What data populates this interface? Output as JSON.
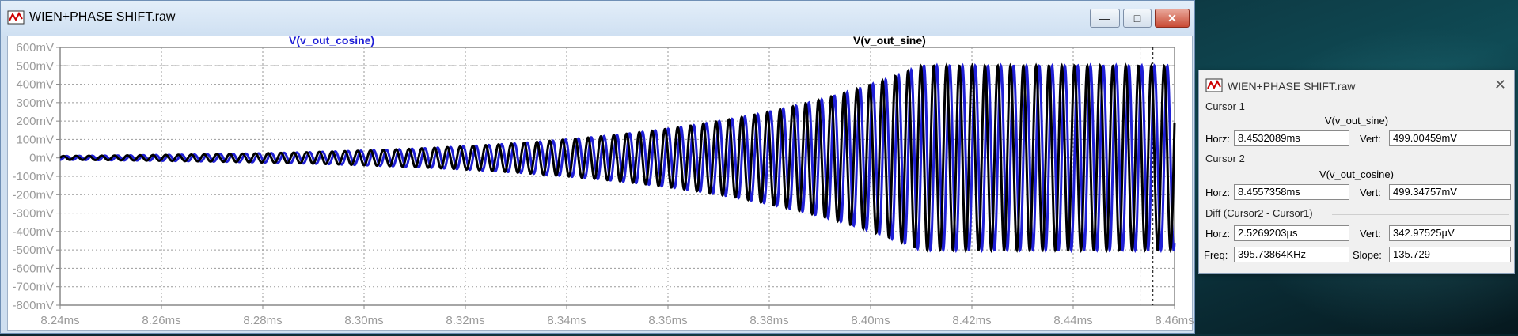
{
  "window": {
    "title": "WIEN+PHASE SHIFT.raw"
  },
  "controls": {
    "minimize": "—",
    "maximize": "□",
    "close": "✕"
  },
  "legend": {
    "trace1": "V(v_out_cosine)",
    "trace2": "V(v_out_sine)"
  },
  "colors": {
    "trace1": "#1f1fd6",
    "trace2": "#000000",
    "grid": "#9a9a9a",
    "axis_text": "#9a9a9a"
  },
  "chart_data": {
    "type": "line",
    "x_ticks": [
      "8.24ms",
      "8.26ms",
      "8.28ms",
      "8.30ms",
      "8.32ms",
      "8.34ms",
      "8.36ms",
      "8.38ms",
      "8.40ms",
      "8.42ms",
      "8.44ms",
      "8.46ms"
    ],
    "y_ticks": [
      "600mV",
      "500mV",
      "400mV",
      "300mV",
      "200mV",
      "100mV",
      "0mV",
      "-100mV",
      "-200mV",
      "-300mV",
      "-400mV",
      "-500mV",
      "-600mV",
      "-700mV",
      "-800mV"
    ],
    "xlim_ms": [
      8.24,
      8.46
    ],
    "ylim_mV": [
      -800,
      600
    ],
    "grid": true,
    "series": [
      {
        "name": "V(v_out_cosine)",
        "color": "#1f1fd6",
        "freq_kHz": 395.74,
        "peak_mV": 500,
        "start_ms": 8.24,
        "start_amp_mV": 10,
        "saturation_ms": 8.41,
        "phase": "cosine"
      },
      {
        "name": "V(v_out_sine)",
        "color": "#000000",
        "freq_kHz": 395.74,
        "peak_mV": 500,
        "start_ms": 8.24,
        "start_amp_mV": 10,
        "saturation_ms": 8.41,
        "phase": "sine"
      }
    ],
    "reference_line_mV": 500,
    "cursor_times_ms": [
      8.4532089,
      8.4557358
    ]
  },
  "cursor_panel": {
    "title": "WIEN+PHASE SHIFT.raw",
    "cursor1": {
      "label": "Cursor 1",
      "trace": "V(v_out_sine)",
      "horz_label": "Horz:",
      "horz": "8.4532089ms",
      "vert_label": "Vert:",
      "vert": "499.00459mV"
    },
    "cursor2": {
      "label": "Cursor 2",
      "trace": "V(v_out_cosine)",
      "horz_label": "Horz:",
      "horz": "8.4557358ms",
      "vert_label": "Vert:",
      "vert": "499.34757mV"
    },
    "diff": {
      "label": "Diff (Cursor2 - Cursor1)",
      "horz_label": "Horz:",
      "horz": "2.5269203µs",
      "vert_label": "Vert:",
      "vert": "342.97525µV",
      "freq_label": "Freq:",
      "freq": "395.73864KHz",
      "slope_label": "Slope:",
      "slope": "135.729"
    }
  }
}
